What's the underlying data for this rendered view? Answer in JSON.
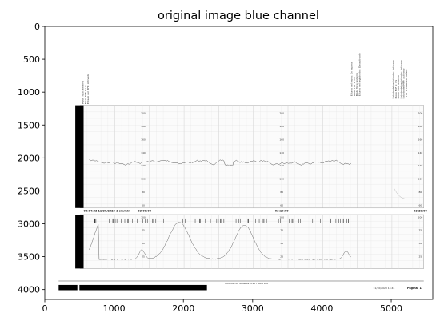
{
  "chart_data": {
    "type": "image",
    "title": "original image blue channel",
    "xlim": [
      0,
      5600
    ],
    "ylim": [
      4150,
      0
    ],
    "xticks": [
      0,
      1000,
      2000,
      3000,
      4000,
      5000
    ],
    "yticks": [
      0,
      500,
      1000,
      1500,
      2000,
      2500,
      3000,
      3500,
      4000
    ]
  },
  "ctg": {
    "top_labels": {
      "left": [
        "Modo Toco: externo",
        "Modo FCF 1: US",
        "Estado del MFP: Activado"
      ],
      "mid": [
        "Estado del modo: En espera",
        "Modo FCF 1: US",
        "Modo Toco: externo",
        "Estado del registrador: Desactivado"
      ],
      "right": [
        "Estado del registrador: Activado",
        "Modo FCF 1: US",
        "Modo Toco: externo",
        "Estado del registrador: Activado",
        "Estado del MFP: Activado",
        "* FCF 1: PÉRDIDA SEÑAL"
      ]
    },
    "fhr_scale": [
      "200",
      "180",
      "160",
      "140",
      "120",
      "100",
      "80",
      "60"
    ],
    "toco_scale": [
      "100",
      "75",
      "50",
      "25"
    ],
    "time_marks": [
      "03:04:33  11/30/2023  1 cm/min",
      "03:09:00",
      "03:19:00",
      "03:29:00"
    ],
    "footer": {
      "center": "Hospital de la Santa Creu i Sant Pau",
      "datetime": "11/30/2023 13:41",
      "page": "Página: 1"
    }
  }
}
